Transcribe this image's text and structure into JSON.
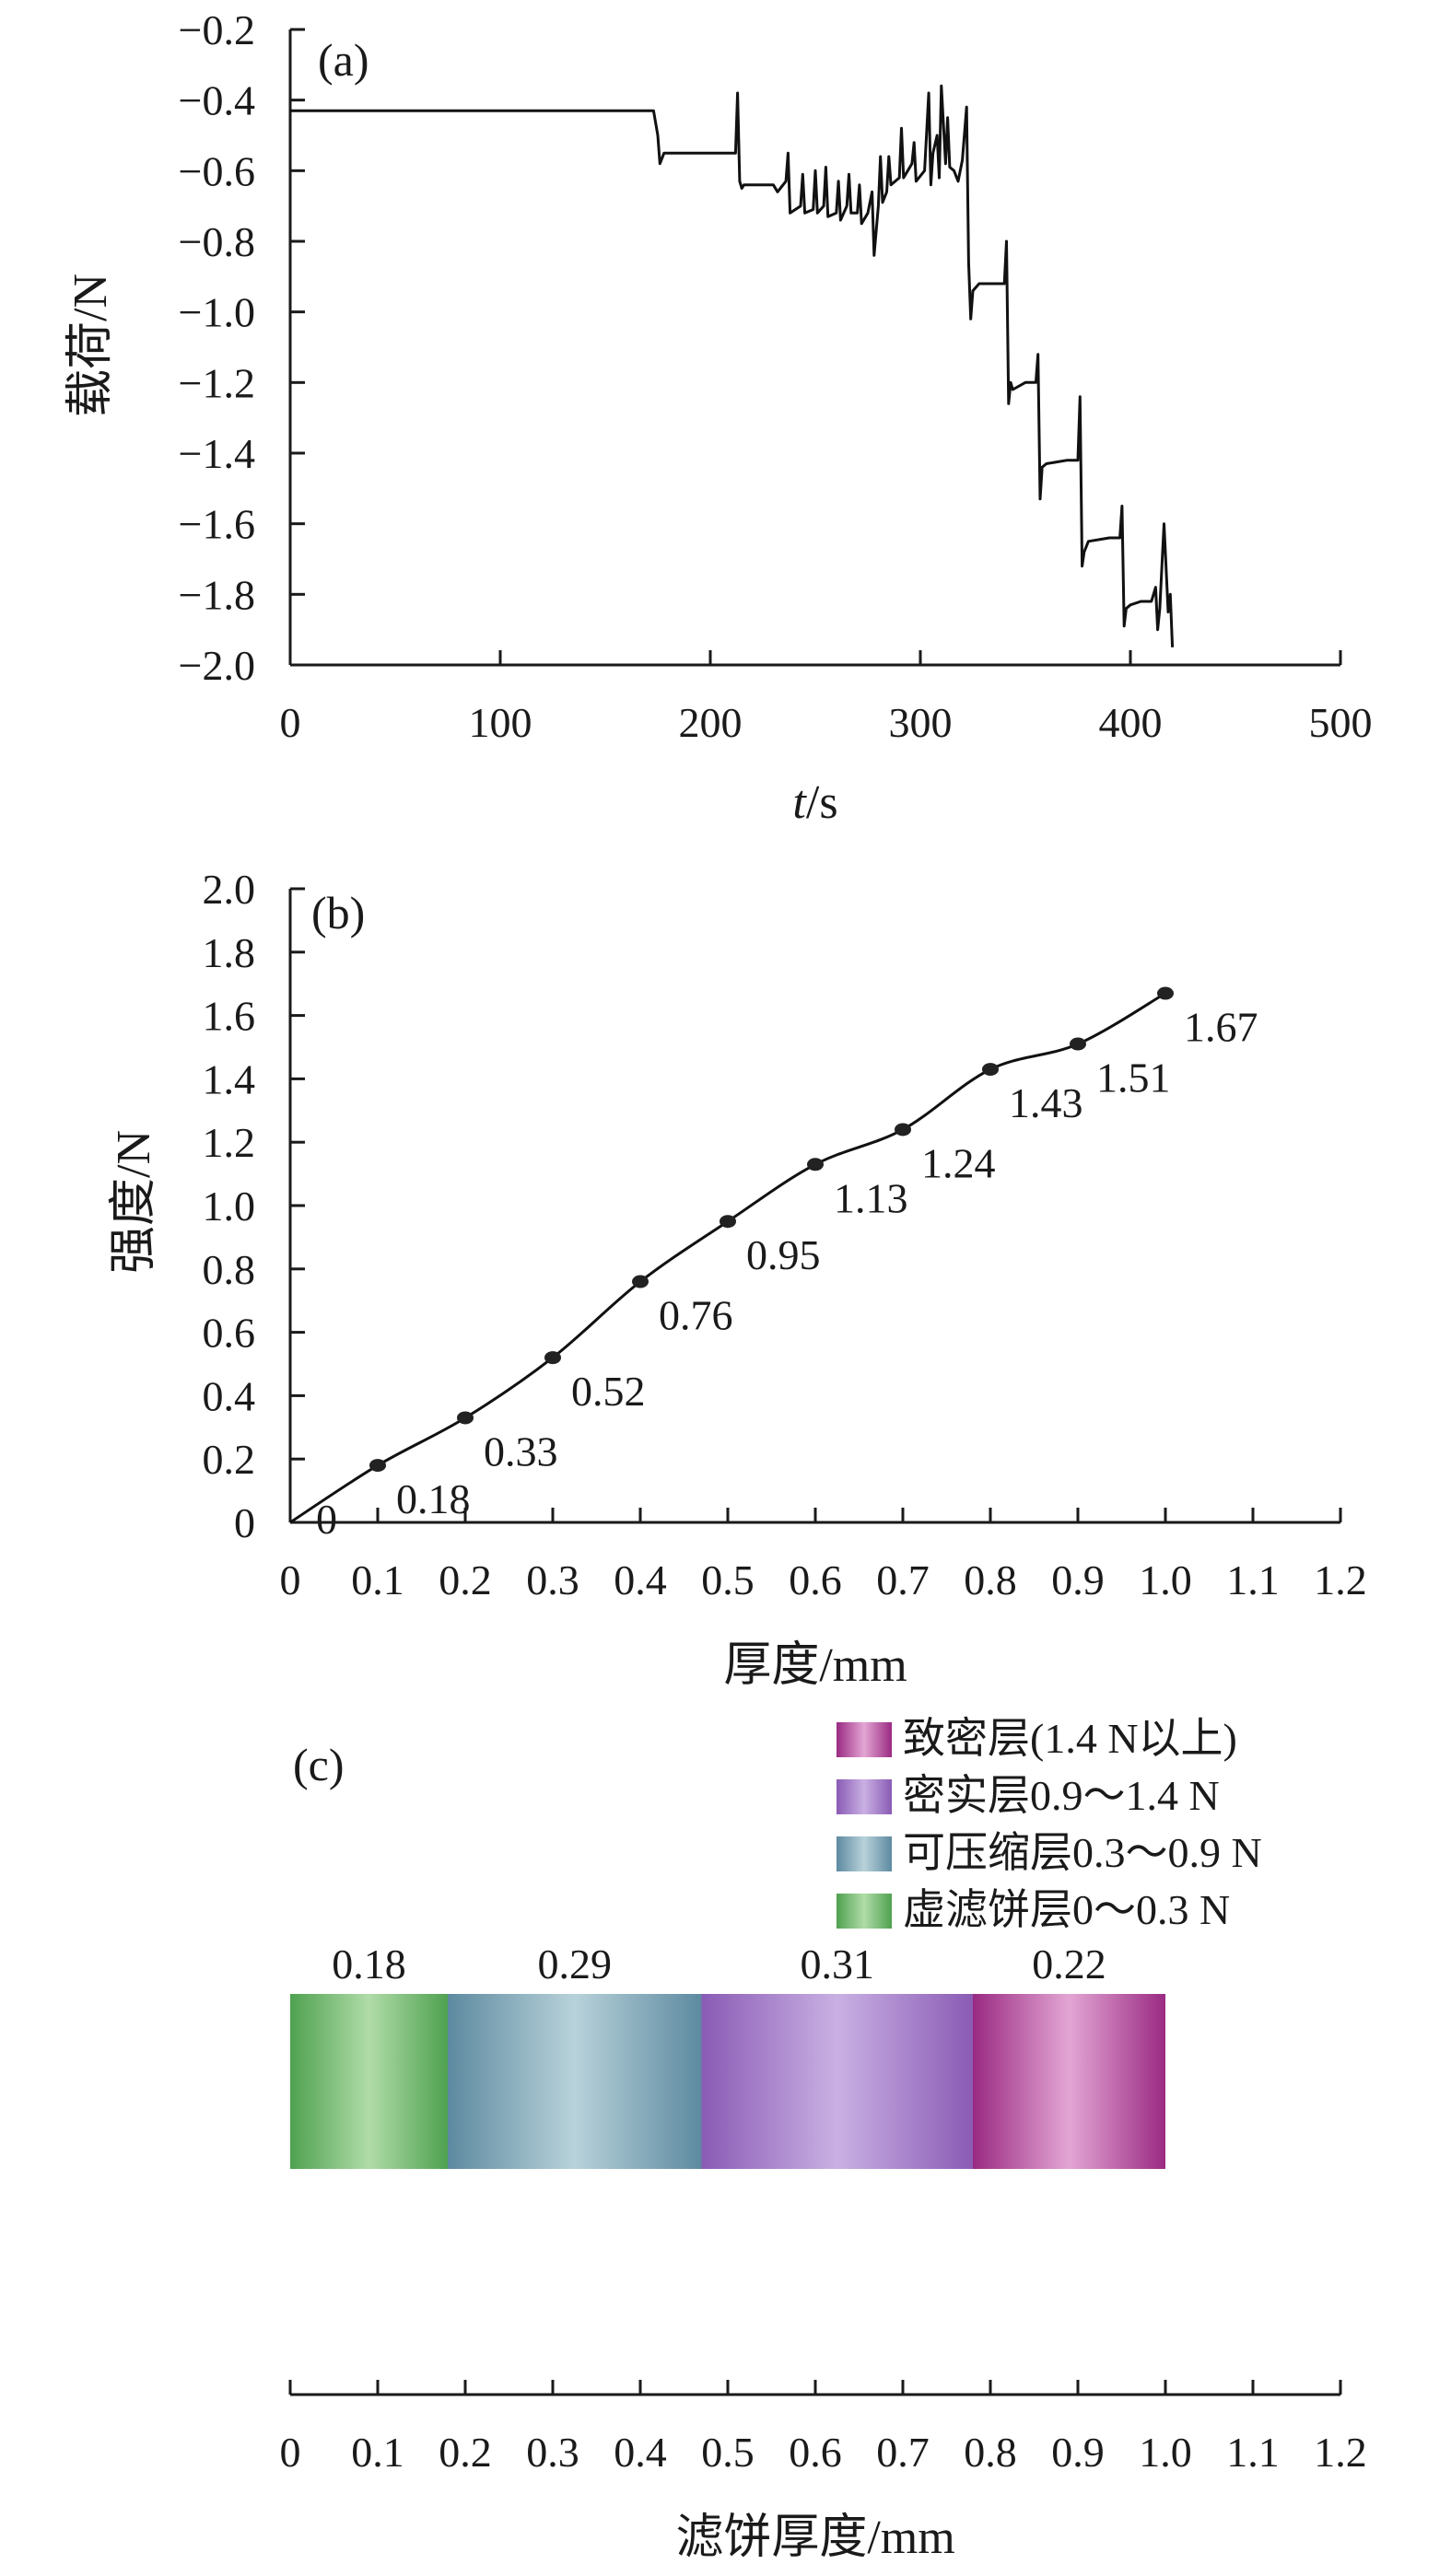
{
  "chart_data": [
    {
      "panel": "(a)",
      "type": "line",
      "title": "",
      "xlabel_italic": "t",
      "xlabel_rest": "/s",
      "ylabel": "载荷/N",
      "xlim": [
        0,
        500
      ],
      "ylim": [
        -2.0,
        -0.2
      ],
      "xticks": [
        0,
        100,
        200,
        300,
        400,
        500
      ],
      "yticks": [
        -0.2,
        -0.4,
        -0.6,
        -0.8,
        -1.0,
        -1.2,
        -1.4,
        -1.6,
        -1.8,
        -2.0
      ],
      "ytick_labels": [
        "−0.2",
        "−0.4",
        "−0.6",
        "−0.8",
        "−1.0",
        "−1.2",
        "−1.4",
        "−1.6",
        "−1.8",
        "−2.0"
      ],
      "series": [
        {
          "x": [
            0,
            173,
            175,
            176,
            178,
            185,
            200,
            212,
            213,
            214,
            215,
            216,
            222,
            230,
            232,
            236,
            237,
            238,
            243,
            244,
            245,
            249,
            250,
            251,
            254,
            255,
            256,
            260,
            261,
            262,
            265,
            266,
            267,
            270,
            271,
            272,
            275,
            277,
            278,
            280,
            281,
            282,
            284,
            285,
            286,
            290,
            291,
            292,
            296,
            297,
            298,
            302,
            304,
            305,
            306,
            308,
            309,
            310,
            312,
            313,
            314,
            316,
            318,
            320,
            322,
            323,
            324,
            325,
            328,
            335,
            340,
            341,
            342,
            343,
            344,
            350,
            355,
            356,
            357,
            358,
            360,
            370,
            375,
            376,
            377,
            378,
            380,
            390,
            395,
            396,
            397,
            398,
            400,
            405,
            410,
            412,
            413,
            414,
            416,
            418,
            419,
            420
          ],
          "y": [
            -0.43,
            -0.43,
            -0.5,
            -0.58,
            -0.55,
            -0.55,
            -0.55,
            -0.55,
            -0.38,
            -0.63,
            -0.65,
            -0.64,
            -0.64,
            -0.64,
            -0.66,
            -0.63,
            -0.55,
            -0.72,
            -0.7,
            -0.61,
            -0.72,
            -0.71,
            -0.6,
            -0.72,
            -0.7,
            -0.59,
            -0.73,
            -0.72,
            -0.63,
            -0.74,
            -0.7,
            -0.61,
            -0.72,
            -0.72,
            -0.64,
            -0.75,
            -0.72,
            -0.66,
            -0.84,
            -0.7,
            -0.56,
            -0.69,
            -0.66,
            -0.56,
            -0.64,
            -0.62,
            -0.48,
            -0.62,
            -0.58,
            -0.52,
            -0.63,
            -0.6,
            -0.38,
            -0.64,
            -0.55,
            -0.5,
            -0.62,
            -0.36,
            -0.58,
            -0.45,
            -0.59,
            -0.6,
            -0.63,
            -0.57,
            -0.42,
            -0.86,
            -1.02,
            -0.94,
            -0.92,
            -0.92,
            -0.92,
            -0.8,
            -1.26,
            -1.2,
            -1.22,
            -1.2,
            -1.2,
            -1.12,
            -1.53,
            -1.44,
            -1.43,
            -1.42,
            -1.42,
            -1.24,
            -1.72,
            -1.68,
            -1.65,
            -1.64,
            -1.64,
            -1.55,
            -1.89,
            -1.84,
            -1.83,
            -1.82,
            -1.82,
            -1.78,
            -1.9,
            -1.84,
            -1.6,
            -1.85,
            -1.8,
            -1.95
          ]
        }
      ]
    },
    {
      "panel": "(b)",
      "type": "line",
      "title": "",
      "xlabel": "厚度/mm",
      "ylabel": "强度/N",
      "xlim": [
        0,
        1.2
      ],
      "ylim": [
        0,
        2.0
      ],
      "xticks": [
        0,
        0.1,
        0.2,
        0.3,
        0.4,
        0.5,
        0.6,
        0.7,
        0.8,
        0.9,
        1.0,
        1.1,
        1.2
      ],
      "xtick_labels": [
        "0",
        "0.1",
        "0.2",
        "0.3",
        "0.4",
        "0.5",
        "0.6",
        "0.7",
        "0.8",
        "0.9",
        "1.0",
        "1.1",
        "1.2"
      ],
      "yticks": [
        0,
        0.2,
        0.4,
        0.6,
        0.8,
        1.0,
        1.2,
        1.4,
        1.6,
        1.8,
        2.0
      ],
      "ytick_labels": [
        "0",
        "0.2",
        "0.4",
        "0.6",
        "0.8",
        "1.0",
        "1.2",
        "1.4",
        "1.6",
        "1.8",
        "2.0"
      ],
      "x": [
        0,
        0.1,
        0.2,
        0.3,
        0.4,
        0.5,
        0.6,
        0.7,
        0.8,
        0.9,
        1.0
      ],
      "y": [
        0,
        0.18,
        0.33,
        0.52,
        0.76,
        0.95,
        1.13,
        1.24,
        1.43,
        1.51,
        1.67
      ],
      "data_labels": [
        "0",
        "0.18",
        "0.33",
        "0.52",
        "0.76",
        "0.95",
        "1.13",
        "1.24",
        "1.43",
        "1.51",
        "1.67"
      ]
    },
    {
      "panel": "(c)",
      "type": "bar",
      "title": "",
      "xlabel": "滤饼厚度/mm",
      "xlim": [
        0,
        1.2
      ],
      "xticks": [
        0,
        0.1,
        0.2,
        0.3,
        0.4,
        0.5,
        0.6,
        0.7,
        0.8,
        0.9,
        1.0,
        1.1,
        1.2
      ],
      "xtick_labels": [
        "0",
        "0.1",
        "0.2",
        "0.3",
        "0.4",
        "0.5",
        "0.6",
        "0.7",
        "0.8",
        "0.9",
        "1.0",
        "1.1",
        "1.2"
      ],
      "legend_placement": "top-right",
      "legend": [
        {
          "label": "致密层(1.4 N以上)",
          "color_edge": "#9a2a82",
          "color_mid": "#e3a6d4"
        },
        {
          "label": "密实层0.9～1.4 N",
          "color_edge": "#8a5bb5",
          "color_mid": "#c9b0e3"
        },
        {
          "label": "可压缩层0.3～0.9 N",
          "color_edge": "#5d8aa0",
          "color_mid": "#b8d2da"
        },
        {
          "label": "虚滤饼层0～0.3 N",
          "color_edge": "#4fa150",
          "color_mid": "#b0dca8"
        }
      ],
      "segments": [
        {
          "thickness": 0.18,
          "label": "0.18",
          "color_edge": "#4fa150",
          "color_mid": "#b0dca8"
        },
        {
          "thickness": 0.29,
          "label": "0.29",
          "color_edge": "#5d8aa0",
          "color_mid": "#b8d2da"
        },
        {
          "thickness": 0.31,
          "label": "0.31",
          "color_edge": "#8a5bb5",
          "color_mid": "#c9b0e3"
        },
        {
          "thickness": 0.22,
          "label": "0.22",
          "color_edge": "#9a2a82",
          "color_mid": "#e3a6d4"
        }
      ]
    }
  ]
}
